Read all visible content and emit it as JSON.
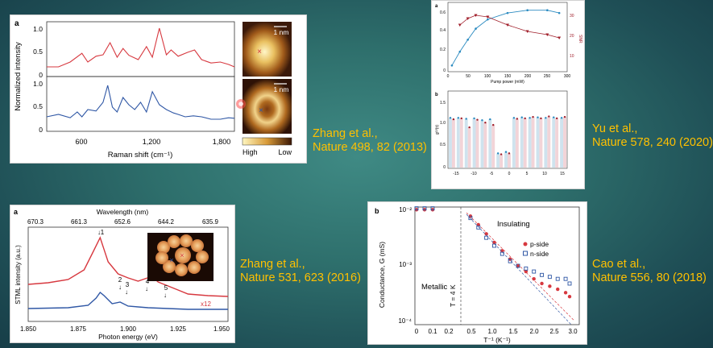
{
  "citations": [
    {
      "line1": "Zhang et al.,",
      "line2": "Nature 498, 82 (2013)"
    },
    {
      "line1": "Yu et al.,",
      "line2": "Nature 578, 240 (2020)"
    },
    {
      "line1": "Zhang et al.,",
      "line2": "Nature 531, 623 (2016)"
    },
    {
      "line1": "Cao et al.,",
      "line2": "Nature 556, 80 (2018)"
    }
  ],
  "colors": {
    "accent": "#ffc000",
    "red": "#d7383f",
    "blue": "#2f57a5"
  },
  "chart_data": [
    {
      "type": "line",
      "panel_label": "a",
      "xlabel": "Raman shift (cm⁻¹)",
      "ylabel": "Normalized intensity",
      "xlim": [
        300,
        1900
      ],
      "ylim": [
        0,
        1.1
      ],
      "x_ticks": [
        "600",
        "1,200",
        "1,800"
      ],
      "y_ticks": [
        "0",
        "0.5",
        "1.0"
      ],
      "series": [
        {
          "name": "red spectrum",
          "x": [
            300,
            400,
            500,
            600,
            650,
            720,
            780,
            840,
            900,
            950,
            1000,
            1080,
            1150,
            1200,
            1260,
            1320,
            1360,
            1420,
            1500,
            1560,
            1620,
            1700,
            1780,
            1850,
            1900
          ],
          "y": [
            0.2,
            0.2,
            0.3,
            0.48,
            0.3,
            0.42,
            0.45,
            0.7,
            0.4,
            0.58,
            0.44,
            0.35,
            0.62,
            0.4,
            1.0,
            0.45,
            0.55,
            0.42,
            0.5,
            0.55,
            0.35,
            0.28,
            0.3,
            0.25,
            0.2
          ]
        },
        {
          "name": "blue spectrum",
          "x": [
            300,
            400,
            500,
            560,
            600,
            650,
            720,
            780,
            820,
            860,
            900,
            950,
            1000,
            1050,
            1100,
            1150,
            1200,
            1260,
            1320,
            1380,
            1420,
            1480,
            1550,
            1620,
            1700,
            1780,
            1850,
            1900
          ],
          "y": [
            0.3,
            0.35,
            0.28,
            0.4,
            0.3,
            0.45,
            0.42,
            0.6,
            0.95,
            0.5,
            0.4,
            0.7,
            0.55,
            0.45,
            0.6,
            0.4,
            0.82,
            0.55,
            0.45,
            0.38,
            0.35,
            0.3,
            0.32,
            0.3,
            0.25,
            0.25,
            0.28,
            0.27
          ]
        }
      ],
      "scale_labels": [
        "1 nm",
        "1 nm"
      ],
      "colorbar": {
        "high": "High",
        "low": "Low"
      }
    },
    {
      "type": "line",
      "panel_label": "a",
      "title": "Wavelength (nm)",
      "xlabel": "Photon energy (eV)",
      "ylabel": "STML intensity (a.u.)",
      "xlim": [
        1.85,
        1.95
      ],
      "top_ticks": [
        "670.3",
        "661.3",
        "652.6",
        "644.2",
        "635.9"
      ],
      "x_ticks": [
        "1.850",
        "1.875",
        "1.900",
        "1.925",
        "1.950"
      ],
      "peaks": [
        "1",
        "2",
        "3",
        "4",
        "5"
      ],
      "scale_note": "x12",
      "series": [
        {
          "name": "red (x12)",
          "x": [
            1.85,
            1.86,
            1.87,
            1.878,
            1.882,
            1.886,
            1.89,
            1.895,
            1.9,
            1.905,
            1.912,
            1.915,
            1.92,
            1.925,
            1.93,
            1.94,
            1.95
          ],
          "y": [
            0.42,
            0.44,
            0.48,
            0.6,
            0.8,
            1.0,
            0.7,
            0.55,
            0.5,
            0.46,
            0.52,
            0.45,
            0.4,
            0.35,
            0.3,
            0.28,
            0.27
          ]
        },
        {
          "name": "blue",
          "x": [
            1.85,
            1.87,
            1.88,
            1.884,
            1.886,
            1.888,
            1.892,
            1.896,
            1.9,
            1.91,
            1.92,
            1.93,
            1.95
          ],
          "y": [
            0.12,
            0.13,
            0.16,
            0.25,
            0.32,
            0.28,
            0.18,
            0.2,
            0.15,
            0.13,
            0.12,
            0.11,
            0.11
          ]
        }
      ]
    },
    {
      "type": "scatter",
      "panel_label": "a",
      "xlabel": "Pump power (mW)",
      "x_ticks": [
        "0",
        "50",
        "100",
        "150",
        "200",
        "250",
        "300"
      ],
      "y_ticks_left": [
        "0.6",
        "0.4",
        "0.2",
        "0"
      ],
      "y_ticks_right": [
        "30",
        "20",
        "10"
      ],
      "right_label": "SNR",
      "series": [
        {
          "name": "blue",
          "x": [
            10,
            30,
            50,
            70,
            100,
            150,
            200,
            250,
            280
          ],
          "y": [
            0.05,
            0.2,
            0.33,
            0.45,
            0.55,
            0.62,
            0.65,
            0.65,
            0.62
          ]
        },
        {
          "name": "red triangles (SNR)",
          "x": [
            30,
            50,
            70,
            100,
            150,
            200,
            250,
            280
          ],
          "y": [
            28,
            32,
            34,
            33,
            28,
            24,
            22,
            20
          ]
        }
      ]
    },
    {
      "type": "bar",
      "panel_label": "b",
      "ylabel": "g⁽²⁾(τ)",
      "x_ticks": [
        "-15",
        "-10",
        "-5",
        "0",
        "5",
        "10",
        "15"
      ],
      "y_ticks": [
        "1.5",
        "1.0",
        "0.5",
        "0"
      ],
      "groups": [
        "-15",
        "-13",
        "-11",
        "-9",
        "-7",
        "-5",
        "-2",
        "0",
        "2",
        "5",
        "7",
        "9",
        "11",
        "13",
        "15"
      ],
      "blue_values": [
        1.05,
        1.05,
        1.03,
        1.04,
        1.0,
        1.02,
        0.3,
        0.33,
        1.05,
        1.06,
        1.05,
        1.06,
        1.05,
        1.06,
        1.05
      ],
      "red_values": [
        1.02,
        1.04,
        0.85,
        1.01,
        0.95,
        0.9,
        0.28,
        0.3,
        1.03,
        1.04,
        1.07,
        1.04,
        1.08,
        1.04,
        1.07
      ]
    },
    {
      "type": "scatter",
      "panel_label": "b",
      "xlabel": "T⁻¹ (K⁻¹)",
      "ylabel": "Conductance, G (mS)",
      "x_ticks": [
        "0",
        "0.1",
        "0.2",
        "0.5",
        "1.0",
        "1.5",
        "2.0",
        "2.5",
        "3.0"
      ],
      "y_ticks": [
        "10⁻⁴",
        "10⁻³",
        "10⁻²"
      ],
      "annotations": {
        "insulating": "Insulating",
        "metallic": "Metallic",
        "t4k": "T = 4 K"
      },
      "legend": [
        "p-side",
        "n-side"
      ],
      "series": [
        {
          "name": "p-side",
          "x": [
            0.6,
            0.8,
            1.0,
            1.2,
            1.4,
            1.6,
            1.8,
            2.0,
            2.2,
            2.4,
            2.6,
            2.8,
            3.0,
            3.1
          ],
          "y": [
            0.007,
            0.005,
            0.0035,
            0.0025,
            0.0018,
            0.0013,
            0.001,
            0.0008,
            0.0006,
            0.0005,
            0.00045,
            0.0004,
            0.00035,
            0.0003
          ]
        },
        {
          "name": "n-side",
          "x": [
            0.6,
            0.8,
            1.0,
            1.2,
            1.4,
            1.6,
            1.8,
            2.0,
            2.2,
            2.4,
            2.6,
            2.8,
            3.0,
            3.1
          ],
          "y": [
            0.0065,
            0.0045,
            0.003,
            0.0022,
            0.0016,
            0.0012,
            0.001,
            0.0009,
            0.0008,
            0.0007,
            0.00065,
            0.0006,
            0.0006,
            0.0005
          ]
        }
      ]
    }
  ]
}
